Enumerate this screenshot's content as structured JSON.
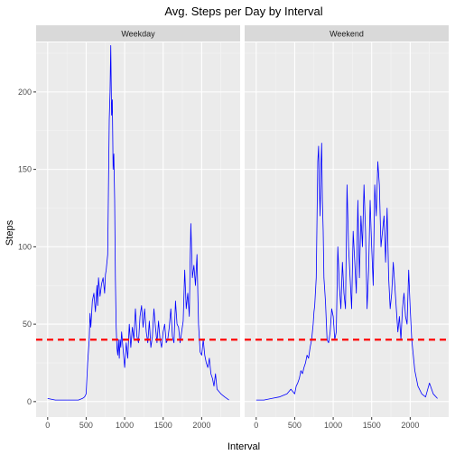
{
  "chart_data": {
    "type": "line",
    "title": "Avg. Steps per Day by Interval",
    "xlabel": "Interval",
    "ylabel": "Steps",
    "xlim": [
      -150,
      2500
    ],
    "ylim": [
      -10,
      232
    ],
    "x_ticks": [
      0,
      500,
      1000,
      1500,
      2000
    ],
    "y_ticks": [
      0,
      50,
      100,
      150,
      200
    ],
    "grid": true,
    "line_color": "#0000ff",
    "reference_line": {
      "y": 40,
      "color": "#ff0000",
      "style": "dashed"
    },
    "panels": [
      {
        "label": "Weekday",
        "series": [
          {
            "x": [
              0,
              100,
              200,
              300,
              400,
              450,
              480,
              500,
              520,
              540,
              550,
              560,
              580,
              600,
              620,
              640,
              650,
              660,
              680,
              700,
              720,
              740,
              750,
              760,
              780,
              800,
              810,
              820,
              830,
              840,
              850,
              860,
              870,
              880,
              890,
              900,
              910,
              920,
              930,
              940,
              950,
              960,
              1000,
              1020,
              1040,
              1060,
              1080,
              1100,
              1120,
              1140,
              1160,
              1180,
              1200,
              1220,
              1240,
              1260,
              1280,
              1300,
              1320,
              1340,
              1360,
              1380,
              1400,
              1420,
              1440,
              1460,
              1480,
              1500,
              1520,
              1540,
              1560,
              1580,
              1600,
              1620,
              1640,
              1660,
              1680,
              1700,
              1720,
              1740,
              1760,
              1780,
              1800,
              1820,
              1840,
              1850,
              1860,
              1880,
              1900,
              1920,
              1940,
              1960,
              1980,
              2000,
              2020,
              2040,
              2060,
              2080,
              2100,
              2120,
              2140,
              2160,
              2180,
              2200,
              2250,
              2300,
              2355
            ],
            "y": [
              2,
              1,
              1,
              1,
              1,
              2,
              3,
              5,
              25,
              40,
              57,
              48,
              65,
              70,
              58,
              75,
              62,
              80,
              68,
              76,
              80,
              70,
              82,
              85,
              95,
              182,
              200,
              230,
              185,
              195,
              150,
              160,
              130,
              80,
              48,
              35,
              30,
              40,
              28,
              40,
              35,
              45,
              22,
              38,
              28,
              50,
              35,
              48,
              40,
              60,
              42,
              38,
              55,
              62,
              48,
              60,
              45,
              38,
              52,
              35,
              42,
              60,
              48,
              38,
              52,
              40,
              35,
              45,
              50,
              38,
              40,
              48,
              60,
              42,
              38,
              65,
              50,
              48,
              38,
              45,
              52,
              85,
              60,
              70,
              55,
              90,
              115,
              80,
              88,
              75,
              95,
              50,
              32,
              30,
              40,
              30,
              25,
              22,
              28,
              18,
              15,
              10,
              18,
              8,
              5,
              3,
              1
            ]
          }
        ]
      },
      {
        "label": "Weekend",
        "series": [
          {
            "x": [
              0,
              100,
              200,
              300,
              400,
              450,
              500,
              520,
              540,
              560,
              580,
              600,
              620,
              640,
              660,
              680,
              700,
              720,
              740,
              750,
              760,
              780,
              800,
              810,
              820,
              830,
              840,
              850,
              860,
              870,
              880,
              900,
              920,
              940,
              960,
              980,
              1000,
              1020,
              1040,
              1060,
              1080,
              1100,
              1120,
              1140,
              1160,
              1180,
              1200,
              1220,
              1240,
              1260,
              1280,
              1300,
              1320,
              1340,
              1360,
              1380,
              1400,
              1420,
              1440,
              1460,
              1480,
              1500,
              1520,
              1540,
              1560,
              1580,
              1600,
              1620,
              1640,
              1660,
              1680,
              1700,
              1720,
              1740,
              1760,
              1780,
              1800,
              1820,
              1840,
              1860,
              1880,
              1900,
              1920,
              1940,
              1960,
              1980,
              2000,
              2020,
              2040,
              2060,
              2080,
              2100,
              2150,
              2200,
              2250,
              2300,
              2355
            ],
            "y": [
              1,
              1,
              2,
              3,
              5,
              8,
              5,
              10,
              12,
              15,
              20,
              18,
              22,
              25,
              30,
              28,
              35,
              40,
              50,
              58,
              62,
              80,
              155,
              165,
              140,
              120,
              150,
              167,
              130,
              110,
              80,
              65,
              40,
              38,
              45,
              60,
              55,
              40,
              45,
              100,
              75,
              60,
              90,
              70,
              60,
              140,
              100,
              80,
              60,
              110,
              90,
              70,
              130,
              80,
              120,
              100,
              140,
              110,
              60,
              85,
              130,
              100,
              75,
              140,
              120,
              155,
              140,
              100,
              110,
              120,
              90,
              125,
              80,
              60,
              70,
              90,
              75,
              60,
              45,
              55,
              40,
              60,
              70,
              55,
              50,
              85,
              60,
              40,
              30,
              20,
              15,
              10,
              5,
              3,
              12,
              5,
              2
            ]
          }
        ]
      }
    ]
  }
}
